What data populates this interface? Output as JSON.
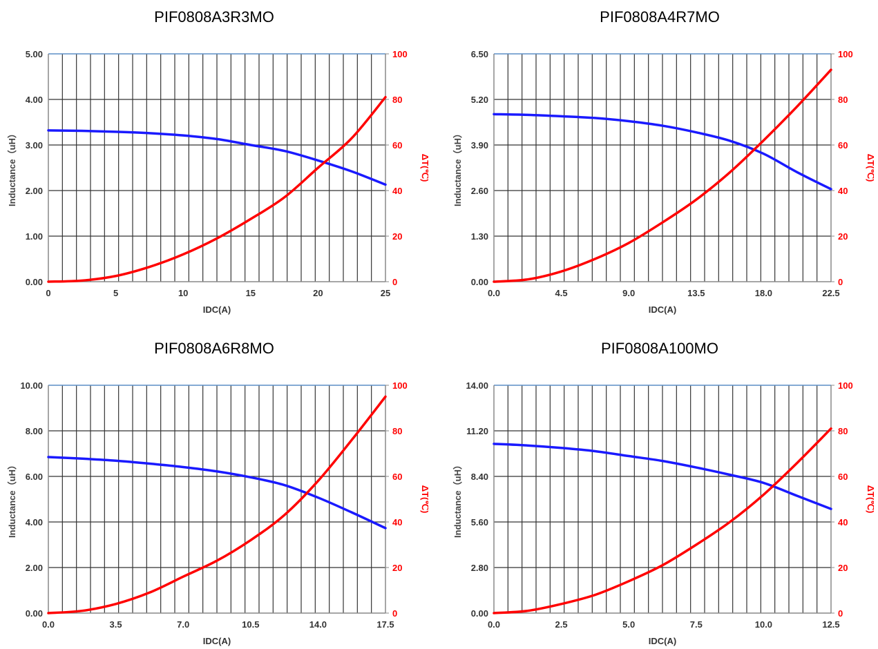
{
  "colors": {
    "inductance": "#1a1aff",
    "temperature": "#ff0000",
    "grid": "#333333",
    "axis": "#5b8ec6"
  },
  "chart_data": [
    {
      "type": "line",
      "title": "PIF0808A3R3MO",
      "xlabel": "IDC(A)",
      "ylabel": "Inductance（uH）",
      "y2label": "ΔT(℃)",
      "xlim": [
        0,
        25
      ],
      "ylim": [
        0,
        5
      ],
      "y2lim": [
        0,
        100
      ],
      "xticks": [
        "0",
        "5",
        "10",
        "15",
        "20",
        "25"
      ],
      "yticks": [
        "0.00",
        "1.00",
        "2.00",
        "3.00",
        "4.00",
        "5.00"
      ],
      "y2ticks": [
        "0",
        "20",
        "40",
        "60",
        "80",
        "100"
      ],
      "grid": true,
      "series": [
        {
          "axis": "left",
          "color": "#1a1aff",
          "x": [
            0,
            2.5,
            5,
            7.5,
            10,
            12.5,
            15,
            17.5,
            20,
            22.5,
            25
          ],
          "y": [
            3.32,
            3.31,
            3.29,
            3.26,
            3.21,
            3.13,
            3.0,
            2.87,
            2.66,
            2.42,
            2.13
          ]
        },
        {
          "axis": "right",
          "color": "#ff0000",
          "x": [
            0,
            2.5,
            5,
            7.5,
            10,
            12.5,
            15,
            17.5,
            20,
            22.5,
            25
          ],
          "y": [
            0,
            0.5,
            2.5,
            6.5,
            12,
            19,
            27.5,
            37,
            50,
            63,
            81
          ]
        }
      ]
    },
    {
      "type": "line",
      "title": "PIF0808A4R7MO",
      "xlabel": "IDC(A)",
      "ylabel": "Inductance（uH）",
      "y2label": "ΔT(℃)",
      "xlim": [
        0,
        22.5
      ],
      "ylim": [
        0,
        6.5
      ],
      "y2lim": [
        0,
        100
      ],
      "xticks": [
        "0.0",
        "4.5",
        "9.0",
        "13.5",
        "18.0",
        "22.5"
      ],
      "yticks": [
        "0.00",
        "1.30",
        "2.60",
        "3.90",
        "5.20",
        "6.50"
      ],
      "y2ticks": [
        "0",
        "20",
        "40",
        "60",
        "80",
        "100"
      ],
      "grid": true,
      "series": [
        {
          "axis": "left",
          "color": "#1a1aff",
          "x": [
            0,
            2.25,
            4.5,
            6.75,
            9,
            11.25,
            13.5,
            15.75,
            18,
            20.25,
            22.5
          ],
          "y": [
            4.78,
            4.76,
            4.72,
            4.67,
            4.58,
            4.45,
            4.26,
            4.02,
            3.65,
            3.12,
            2.64
          ]
        },
        {
          "axis": "right",
          "color": "#ff0000",
          "x": [
            0,
            2.25,
            4.5,
            6.75,
            9,
            11.25,
            13.5,
            15.75,
            18,
            20.25,
            22.5
          ],
          "y": [
            0,
            1,
            4.5,
            10,
            17,
            26,
            36,
            48,
            62,
            77,
            93
          ]
        }
      ]
    },
    {
      "type": "line",
      "title": "PIF0808A6R8MO",
      "xlabel": "IDC(A)",
      "ylabel": "Inductance（uH）",
      "y2label": "ΔT(℃)",
      "xlim": [
        0,
        17.5
      ],
      "ylim": [
        0,
        10
      ],
      "y2lim": [
        0,
        100
      ],
      "xticks": [
        "0.0",
        "3.5",
        "7.0",
        "10.5",
        "14.0",
        "17.5"
      ],
      "yticks": [
        "0.00",
        "2.00",
        "4.00",
        "6.00",
        "8.00",
        "10.00"
      ],
      "y2ticks": [
        "0",
        "20",
        "40",
        "60",
        "80",
        "100"
      ],
      "grid": true,
      "series": [
        {
          "axis": "left",
          "color": "#1a1aff",
          "x": [
            0,
            1.75,
            3.5,
            5.25,
            7,
            8.75,
            10.5,
            12.25,
            14,
            15.75,
            17.5
          ],
          "y": [
            6.85,
            6.78,
            6.69,
            6.56,
            6.41,
            6.22,
            5.96,
            5.62,
            5.07,
            4.42,
            3.73
          ]
        },
        {
          "axis": "right",
          "color": "#ff0000",
          "x": [
            0,
            1.75,
            3.5,
            5.25,
            7,
            8.75,
            10.5,
            12.25,
            14,
            15.75,
            17.5
          ],
          "y": [
            0,
            1,
            4,
            9,
            16,
            23,
            32,
            43,
            58,
            76,
            95
          ]
        }
      ]
    },
    {
      "type": "line",
      "title": "PIF0808A100MO",
      "xlabel": "IDC(A)",
      "ylabel": "Inductance（uH）",
      "y2label": "ΔT(℃)",
      "xlim": [
        0,
        12.5
      ],
      "ylim": [
        0,
        14
      ],
      "y2lim": [
        0,
        100
      ],
      "xticks": [
        "0.0",
        "2.5",
        "5.0",
        "7.5",
        "10.0",
        "12.5"
      ],
      "yticks": [
        "0.00",
        "2.80",
        "5.60",
        "8.40",
        "11.20",
        "14.00"
      ],
      "y2ticks": [
        "0",
        "20",
        "40",
        "60",
        "80",
        "100"
      ],
      "grid": true,
      "series": [
        {
          "axis": "left",
          "color": "#1a1aff",
          "x": [
            0,
            1.25,
            2.5,
            3.75,
            5,
            6.25,
            7.5,
            8.75,
            10,
            11.25,
            12.5
          ],
          "y": [
            10.4,
            10.3,
            10.15,
            9.95,
            9.65,
            9.35,
            8.95,
            8.5,
            8.0,
            7.2,
            6.4
          ]
        },
        {
          "axis": "right",
          "color": "#ff0000",
          "x": [
            0,
            1.25,
            2.5,
            3.75,
            5,
            6.25,
            7.5,
            8.75,
            10,
            11.25,
            12.5
          ],
          "y": [
            0,
            1,
            4,
            8,
            14,
            21,
            30,
            40,
            52,
            66,
            81
          ]
        }
      ]
    }
  ]
}
